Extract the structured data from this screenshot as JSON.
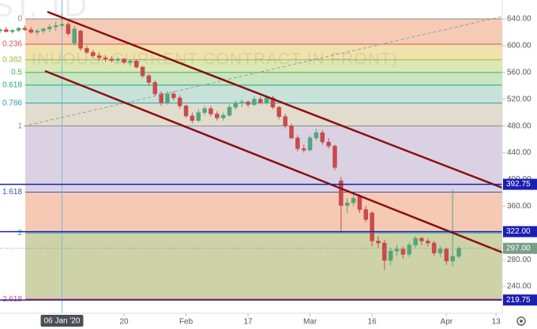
{
  "chart_data": {
    "type": "candlestick",
    "watermark": "INUOUS: CURRENT CONTRACT IN FRONT)",
    "symbol_watermark": "ST, 1D",
    "x": [
      "2019-12-23",
      "2019-12-24",
      "2019-12-25",
      "2019-12-26",
      "2019-12-27",
      "2019-12-30",
      "2019-12-31",
      "2020-01-01",
      "2020-01-02",
      "2020-01-03",
      "2020-01-06",
      "2020-01-07",
      "2020-01-08",
      "2020-01-09",
      "2020-01-10",
      "2020-01-13",
      "2020-01-14",
      "2020-01-15",
      "2020-01-16",
      "2020-01-17",
      "2020-01-20",
      "2020-01-21",
      "2020-01-22",
      "2020-01-23",
      "2020-01-24",
      "2020-01-27",
      "2020-01-28",
      "2020-01-29",
      "2020-01-30",
      "2020-01-31",
      "2020-02-03",
      "2020-02-04",
      "2020-02-05",
      "2020-02-06",
      "2020-02-07",
      "2020-02-10",
      "2020-02-11",
      "2020-02-12",
      "2020-02-13",
      "2020-02-14",
      "2020-02-17",
      "2020-02-18",
      "2020-02-19",
      "2020-02-20",
      "2020-02-21",
      "2020-02-24",
      "2020-02-25",
      "2020-02-26",
      "2020-02-27",
      "2020-02-28",
      "2020-03-02",
      "2020-03-03",
      "2020-03-04",
      "2020-03-05",
      "2020-03-06",
      "2020-03-09",
      "2020-03-10",
      "2020-03-11",
      "2020-03-12",
      "2020-03-13",
      "2020-03-16",
      "2020-03-17",
      "2020-03-18",
      "2020-03-19",
      "2020-03-20",
      "2020-03-23",
      "2020-03-24",
      "2020-03-25",
      "2020-03-26",
      "2020-03-27",
      "2020-03-30",
      "2020-03-31",
      "2020-04-01",
      "2020-04-02",
      "2020-04-03"
    ],
    "open": [
      622,
      624,
      621,
      623,
      626,
      624,
      620,
      622,
      625,
      628,
      630,
      632,
      604,
      622,
      596,
      590,
      585,
      582,
      580,
      578,
      580,
      575,
      577,
      568,
      555,
      545,
      528,
      515,
      528,
      522,
      510,
      495,
      488,
      500,
      506,
      498,
      492,
      496,
      508,
      514,
      516,
      512,
      520,
      515,
      522,
      508,
      494,
      480,
      462,
      446,
      444,
      462,
      470,
      456,
      450,
      398,
      361,
      365,
      375,
      355,
      350,
      308,
      305,
      279,
      293,
      296,
      288,
      302,
      312,
      308,
      305,
      290,
      296,
      278,
      285
    ],
    "high": [
      626,
      628,
      625,
      628,
      630,
      628,
      625,
      627,
      632,
      636,
      648,
      636,
      630,
      624,
      600,
      594,
      590,
      586,
      584,
      583,
      582,
      580,
      580,
      570,
      558,
      548,
      532,
      532,
      532,
      526,
      512,
      500,
      505,
      510,
      510,
      502,
      500,
      512,
      518,
      520,
      518,
      524,
      524,
      526,
      525,
      510,
      498,
      484,
      466,
      452,
      466,
      476,
      474,
      462,
      452,
      404,
      372,
      380,
      378,
      360,
      352,
      315,
      310,
      298,
      302,
      300,
      306,
      316,
      314,
      312,
      308,
      300,
      298,
      385,
      300
    ],
    "low": [
      618,
      620,
      618,
      620,
      622,
      618,
      616,
      618,
      620,
      622,
      625,
      615,
      600,
      592,
      588,
      582,
      578,
      576,
      575,
      574,
      572,
      570,
      566,
      552,
      540,
      525,
      510,
      512,
      518,
      506,
      492,
      484,
      486,
      496,
      494,
      488,
      488,
      494,
      504,
      508,
      508,
      510,
      512,
      512,
      505,
      490,
      476,
      460,
      442,
      440,
      442,
      458,
      452,
      446,
      414,
      320,
      350,
      360,
      350,
      336,
      300,
      298,
      265,
      272,
      286,
      282,
      284,
      298,
      302,
      300,
      286,
      284,
      272,
      270,
      282
    ],
    "close": [
      624,
      621,
      623,
      626,
      624,
      620,
      622,
      625,
      628,
      630,
      632,
      618,
      625,
      596,
      590,
      585,
      582,
      580,
      578,
      580,
      575,
      577,
      568,
      555,
      545,
      528,
      515,
      528,
      522,
      510,
      495,
      488,
      500,
      506,
      498,
      492,
      496,
      508,
      514,
      516,
      512,
      520,
      515,
      522,
      508,
      494,
      480,
      462,
      446,
      444,
      462,
      470,
      456,
      450,
      418,
      361,
      365,
      372,
      355,
      340,
      308,
      305,
      279,
      293,
      296,
      288,
      302,
      312,
      308,
      305,
      290,
      296,
      278,
      285,
      297
    ],
    "up_color": "#53a57b",
    "down_color": "#c94a4a",
    "xlim": [
      "2019-12-23",
      "2020-04-14"
    ],
    "xticks": [
      {
        "value": "2020-01-20",
        "label": "20"
      },
      {
        "value": "2020-02-03",
        "label": "Feb"
      },
      {
        "value": "2020-02-17",
        "label": "17"
      },
      {
        "value": "2020-03-02",
        "label": "Mar"
      },
      {
        "value": "2020-03-16",
        "label": "16"
      },
      {
        "value": "2020-04-01",
        "label": "Apr"
      },
      {
        "value": "2020-04-13",
        "label": "13"
      }
    ],
    "crosshair": {
      "value": "2020-01-06",
      "label": "06 Jan '20"
    },
    "ylim": [
      200,
      668.3
    ],
    "yticks": [
      {
        "value": 240,
        "label": "240.00"
      },
      {
        "value": 280,
        "label": "280.00"
      },
      {
        "value": 360,
        "label": "360.00"
      },
      {
        "value": 400,
        "label": "400.00"
      },
      {
        "value": 440,
        "label": "440.00"
      },
      {
        "value": 480,
        "label": "480.00"
      },
      {
        "value": 520,
        "label": "520.00"
      },
      {
        "value": 560,
        "label": "560.00"
      },
      {
        "value": 600,
        "label": "600.00"
      },
      {
        "value": 640,
        "label": "640.00"
      }
    ],
    "fib_levels": [
      {
        "ratio": 0,
        "price": 640,
        "color": "#8a8a8a",
        "fill": "#f6cbb6"
      },
      {
        "ratio": 0.236,
        "price": 602.2,
        "color": "#e0504f",
        "fill": "#f0e2ad"
      },
      {
        "ratio": 0.382,
        "price": 578.9,
        "color": "#a9b13d",
        "fill": "#dbe8b5"
      },
      {
        "ratio": 0.5,
        "price": 560,
        "color": "#4caf50",
        "fill": "#c8e5c4"
      },
      {
        "ratio": 0.618,
        "price": 541.1,
        "color": "#26a66a",
        "fill": "#c7e3d9"
      },
      {
        "ratio": 0.786,
        "price": 514.2,
        "color": "#2d9cb0",
        "fill": "#e2dccd"
      },
      {
        "ratio": 1,
        "price": 480,
        "color": "#8a8a8a",
        "fill": "#dad2e2"
      },
      {
        "ratio": 1.618,
        "price": 381.1,
        "color": "#3f51b5",
        "fill": "#f5c9b4"
      },
      {
        "ratio": 2,
        "price": 320,
        "color": "#26a69a",
        "fill": "#ced2a8"
      },
      {
        "ratio": 2.618,
        "price": 221.1,
        "color": "#e0504f"
      }
    ],
    "levels": {
      "values": [
        392.75,
        322.0,
        219.75
      ],
      "value_labels": [
        "392.75",
        "322.00",
        "219.75"
      ],
      "color": "#1b1fb0"
    },
    "last_price": {
      "value": 297.0,
      "label": "297.00",
      "color": "#789e86"
    }
  }
}
